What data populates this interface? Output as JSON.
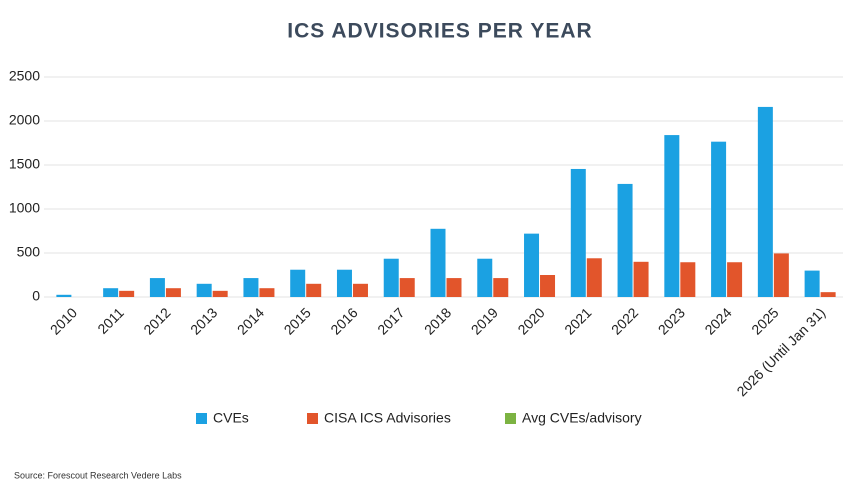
{
  "chart_data": {
    "type": "bar",
    "title": "ICS ADVISORIES PER YEAR",
    "categories": [
      "2010",
      "2011",
      "2012",
      "2013",
      "2014",
      "2015",
      "2016",
      "2017",
      "2018",
      "2019",
      "2020",
      "2021",
      "2022",
      "2023",
      "2024",
      "2025",
      "2026 (Until Jan 31)"
    ],
    "series": [
      {
        "name": "CVEs",
        "color": "#1ba1e2",
        "values": [
          25,
          100,
          215,
          150,
          215,
          310,
          310,
          435,
          775,
          435,
          720,
          1455,
          1285,
          1840,
          1765,
          2160,
          300
        ]
      },
      {
        "name": "CISA ICS Advisories",
        "color": "#e2552b",
        "values": [
          0,
          70,
          100,
          70,
          100,
          150,
          150,
          215,
          215,
          215,
          250,
          440,
          400,
          395,
          395,
          495,
          55
        ]
      },
      {
        "name": "Avg CVEs/advisory",
        "color": "#7cb342",
        "values": [
          null,
          null,
          null,
          null,
          null,
          null,
          null,
          null,
          null,
          null,
          null,
          null,
          null,
          null,
          null,
          null,
          null
        ]
      }
    ],
    "ylim": [
      0,
      2500
    ],
    "yticks": [
      0,
      500,
      1000,
      1500,
      2000,
      2500
    ],
    "grid": true,
    "legend": "bottom",
    "source": "Source: Forescout Research Vedere Labs"
  }
}
